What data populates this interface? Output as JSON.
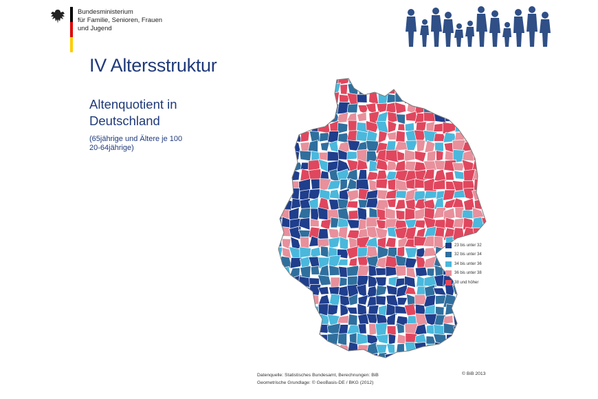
{
  "header": {
    "ministry_lines": [
      "Bundesministerium",
      "für Familie, Senioren, Frauen",
      "und Jugend"
    ],
    "flag_colors": [
      "#000000",
      "#dd0000",
      "#ffcc00"
    ],
    "eagle_icon": "federal-eagle-icon",
    "people_icon": "family-silhouettes-icon",
    "people_color": "#2f4f86"
  },
  "slide": {
    "title": "IV Altersstruktur",
    "subtitle_lines": [
      "Altenquotient in",
      "Deutschland"
    ],
    "note_lines": [
      "(65jährige und Ältere je 100",
      "20-64jährige)"
    ]
  },
  "map": {
    "region": "Deutschland",
    "legend": [
      {
        "label": "23 bis unter 32",
        "color": "#1f3e8c"
      },
      {
        "label": "32 bis unter 34",
        "color": "#2f6f9e"
      },
      {
        "label": "34 bis unter 36",
        "color": "#4ab8dc"
      },
      {
        "label": "36 bis unter 38",
        "color": "#e8909c"
      },
      {
        "label": "38 und höher",
        "color": "#e0475e"
      }
    ]
  },
  "footer": {
    "source_lines": [
      "Datenquelle: Statistisches Bundesamt, Berechnungen: BiB",
      "Geometrische Grundlage: © GeoBasis-DE / BKG (2012)"
    ],
    "copyright": "© BiB 2013"
  }
}
